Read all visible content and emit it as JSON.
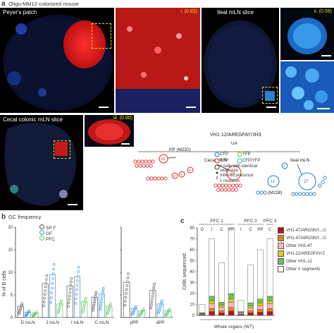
{
  "panel_a": {
    "letter": "a",
    "title": "Oligo-MM12-colonized mouse",
    "images": [
      {
        "label": "Peyer's patch",
        "badge": ""
      },
      {
        "label": "",
        "badge": "i. (0.82)"
      },
      {
        "label": "Ileal mLN slice",
        "badge": ""
      },
      {
        "label": "",
        "badge": "ii. (0.59)"
      },
      {
        "label": "Cecal colonic mLN slice",
        "badge": ""
      },
      {
        "label": "",
        "badge": "iii. (0.80)"
      }
    ],
    "roman_marks": [
      "i.",
      "ii.",
      "iii."
    ],
    "lineage": {
      "title": "VH1-12/AREGFAY/JH3",
      "ua_label": "UA",
      "nodes": [
        {
          "label": "16",
          "tag": "PP (M232)",
          "color": "#d22"
        },
        {
          "label": "31",
          "tag": "Cecal mLN",
          "color": "#d22"
        },
        {
          "label": "9",
          "tag": "",
          "color": "#d22"
        },
        {
          "label": "4",
          "tag": "",
          "color": "#d22"
        },
        {
          "label": "5",
          "tag": "",
          "color": "#d22"
        },
        {
          "label": "12",
          "tag": "(M228)",
          "color": "#1e78c8"
        },
        {
          "label": "27",
          "tag": "Ileal mLN",
          "color": "#1e78c8"
        },
        {
          "label": "3",
          "tag": "",
          "color": "#1e78c8"
        }
      ],
      "legend": [
        {
          "symbol": "o",
          "color": "#1e78c8",
          "text": "CFP"
        },
        {
          "symbol": "o",
          "color": "#9ab820",
          "text": "YFP"
        },
        {
          "symbol": "o",
          "color": "#d22",
          "text": "RFP"
        },
        {
          "symbol": "o",
          "color": "#27b8c8",
          "text": "CFP/YFP"
        },
        {
          "symbol": "n",
          "color": "#333",
          "text": "n cells with identical sequence"
        },
        {
          "symbol": "dot",
          "color": "#333",
          "text": "Inferred precursor"
        },
        {
          "symbol": "tick",
          "color": "#333",
          "text": "1 mutation"
        }
      ]
    }
  },
  "panel_b": {
    "letter": "b",
    "title": "GC frequency",
    "ylabel": "% of B cells",
    "legend": [
      {
        "name": "SP F",
        "color": "#555555"
      },
      {
        "name": "GF",
        "color": "#3a8fd8"
      },
      {
        "name": "PFC",
        "color": "#5fbf5f"
      }
    ],
    "chart_data": {
      "type": "scatter",
      "ylim": [
        0,
        20
      ],
      "yticks": [
        0,
        5,
        10,
        15,
        20
      ],
      "groups_left": [
        "D mLN",
        "J mLN",
        "I mLN",
        "C mLN"
      ],
      "groups_right": [
        "pPP",
        "dPP"
      ],
      "series": [
        {
          "name": "SP F",
          "means": {
            "D mLN": 2.5,
            "J mLN": 7.5,
            "I mLN": 7.0,
            "C mLN": 4.5,
            "pPP": 7.8,
            "dPP": 6.0
          }
        },
        {
          "name": "GF",
          "means": {
            "D mLN": 1.2,
            "J mLN": 9.5,
            "I mLN": 9.0,
            "C mLN": 5.2,
            "pPP": 2.0,
            "dPP": 3.0
          }
        },
        {
          "name": "PFC",
          "means": {
            "D mLN": 1.0,
            "J mLN": 3.0,
            "I mLN": 3.5,
            "C mLN": 2.5,
            "pPP": 1.5,
            "dPP": 1.5
          }
        }
      ]
    }
  },
  "panel_c": {
    "letter": "c",
    "ylabel": "Cells sequenced",
    "xlabel": "Whole organs (WT)",
    "group_labels": [
      "PFC 1",
      "PFC 2",
      "PFC 3"
    ],
    "col_labels": [
      "D",
      "I",
      "C",
      "PP",
      "I",
      "C",
      "PP",
      "C"
    ],
    "chart_data": {
      "type": "bar",
      "ylim": [
        0,
        80
      ],
      "yticks": [
        0,
        10,
        20,
        30,
        40,
        50,
        60,
        70,
        80
      ],
      "categories": [
        "D",
        "I",
        "C",
        "PP",
        "I",
        "C",
        "PP",
        "C"
      ],
      "totals": [
        10,
        70,
        48,
        80,
        14,
        46,
        60,
        70
      ]
    },
    "legend": [
      {
        "text": "VH1-47/ARGSNY.../J",
        "color": "#b01818"
      },
      {
        "text": "VH1-47/ARGSNY.../J",
        "color": "#e88020"
      },
      {
        "text": "Other VH1-47",
        "color": "#f5b8b8"
      },
      {
        "text": "VH1-12/AREGFAY/J",
        "color": "#d8cc20"
      },
      {
        "text": "Other VH1-12",
        "color": "#6cc060"
      },
      {
        "text": "Other V segments",
        "color": "#ffffff"
      }
    ]
  }
}
